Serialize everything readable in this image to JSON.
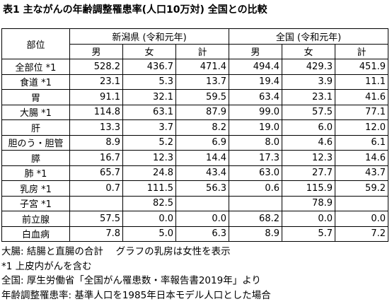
{
  "title": "表1 主ながんの年齢調整罹患率(人口10万対) 全国との比較",
  "table": {
    "corner": "部位",
    "groups": [
      "新潟県 (令和元年)",
      "全国 (令和元年)"
    ],
    "subheaders": [
      "男",
      "女",
      "計",
      "男",
      "女",
      "計"
    ],
    "rows": [
      [
        "全部位 *1",
        "528.2",
        "436.7",
        "471.4",
        "494.4",
        "429.3",
        "451.9"
      ],
      [
        "食道 *1",
        "23.1",
        "5.3",
        "13.7",
        "19.4",
        "3.9",
        "11.1"
      ],
      [
        "胃",
        "91.1",
        "32.1",
        "59.5",
        "63.4",
        "23.1",
        "41.6"
      ],
      [
        "大腸 *1",
        "114.8",
        "63.1",
        "87.9",
        "99.0",
        "57.5",
        "77.1"
      ],
      [
        "肝",
        "13.3",
        "3.7",
        "8.2",
        "19.0",
        "6.0",
        "12.0"
      ],
      [
        "胆のう・胆管",
        "8.9",
        "5.2",
        "6.9",
        "8.0",
        "4.6",
        "6.1"
      ],
      [
        "膵",
        "16.7",
        "12.3",
        "14.4",
        "17.3",
        "12.3",
        "14.6"
      ],
      [
        "肺 *1",
        "65.7",
        "24.8",
        "43.4",
        "63.0",
        "27.7",
        "43.7"
      ],
      [
        "乳房 *1",
        "0.7",
        "111.5",
        "56.3",
        "0.6",
        "115.9",
        "59.2"
      ],
      [
        "子宮 *1",
        null,
        "82.5",
        null,
        null,
        "78.9",
        null
      ],
      [
        "前立腺",
        "57.5",
        "0.0",
        "0.0",
        "68.2",
        "0.0",
        "0.0"
      ],
      [
        "白血病",
        "7.8",
        "5.0",
        "6.3",
        "8.9",
        "5.7",
        "7.2"
      ]
    ]
  },
  "notes": [
    "大腸: 結腸と直腸の合計　 グラフの乳房は女性を表示",
    "*1 上皮内がんを含む",
    "全国: 厚生労働省「全国がん罹患数・率報告書2019年」より",
    "年齢調整罹患率: 基準人口を1985年日本モデル人口とした場合"
  ]
}
